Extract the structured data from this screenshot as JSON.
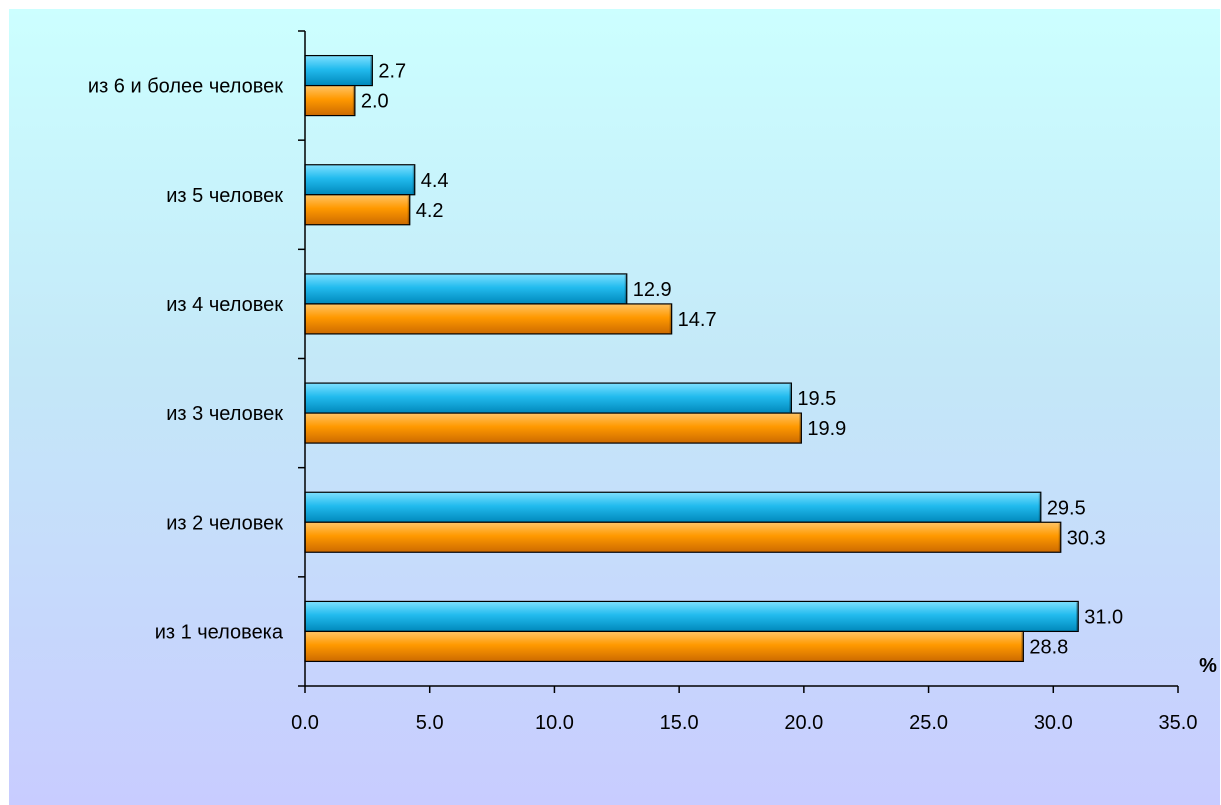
{
  "chart_data": {
    "type": "bar",
    "orientation": "horizontal",
    "categories": [
      "из 6 и более человек",
      "из 5 человек",
      "из 4 человек",
      "из 3 человек",
      "из 2 человек",
      "из 1 человека"
    ],
    "series": [
      {
        "color": "#22bbee",
        "values": [
          2.7,
          4.4,
          12.9,
          19.5,
          29.5,
          31.0
        ]
      },
      {
        "color": "#ff9900",
        "values": [
          2.0,
          4.2,
          14.7,
          19.9,
          30.3,
          28.8
        ]
      }
    ],
    "xlim": [
      0,
      35
    ],
    "xticks": [
      "0.0",
      "5.0",
      "10.0",
      "15.0",
      "20.0",
      "25.0",
      "30.0",
      "35.0"
    ],
    "xunit": "%",
    "grid": false,
    "legend": false
  }
}
